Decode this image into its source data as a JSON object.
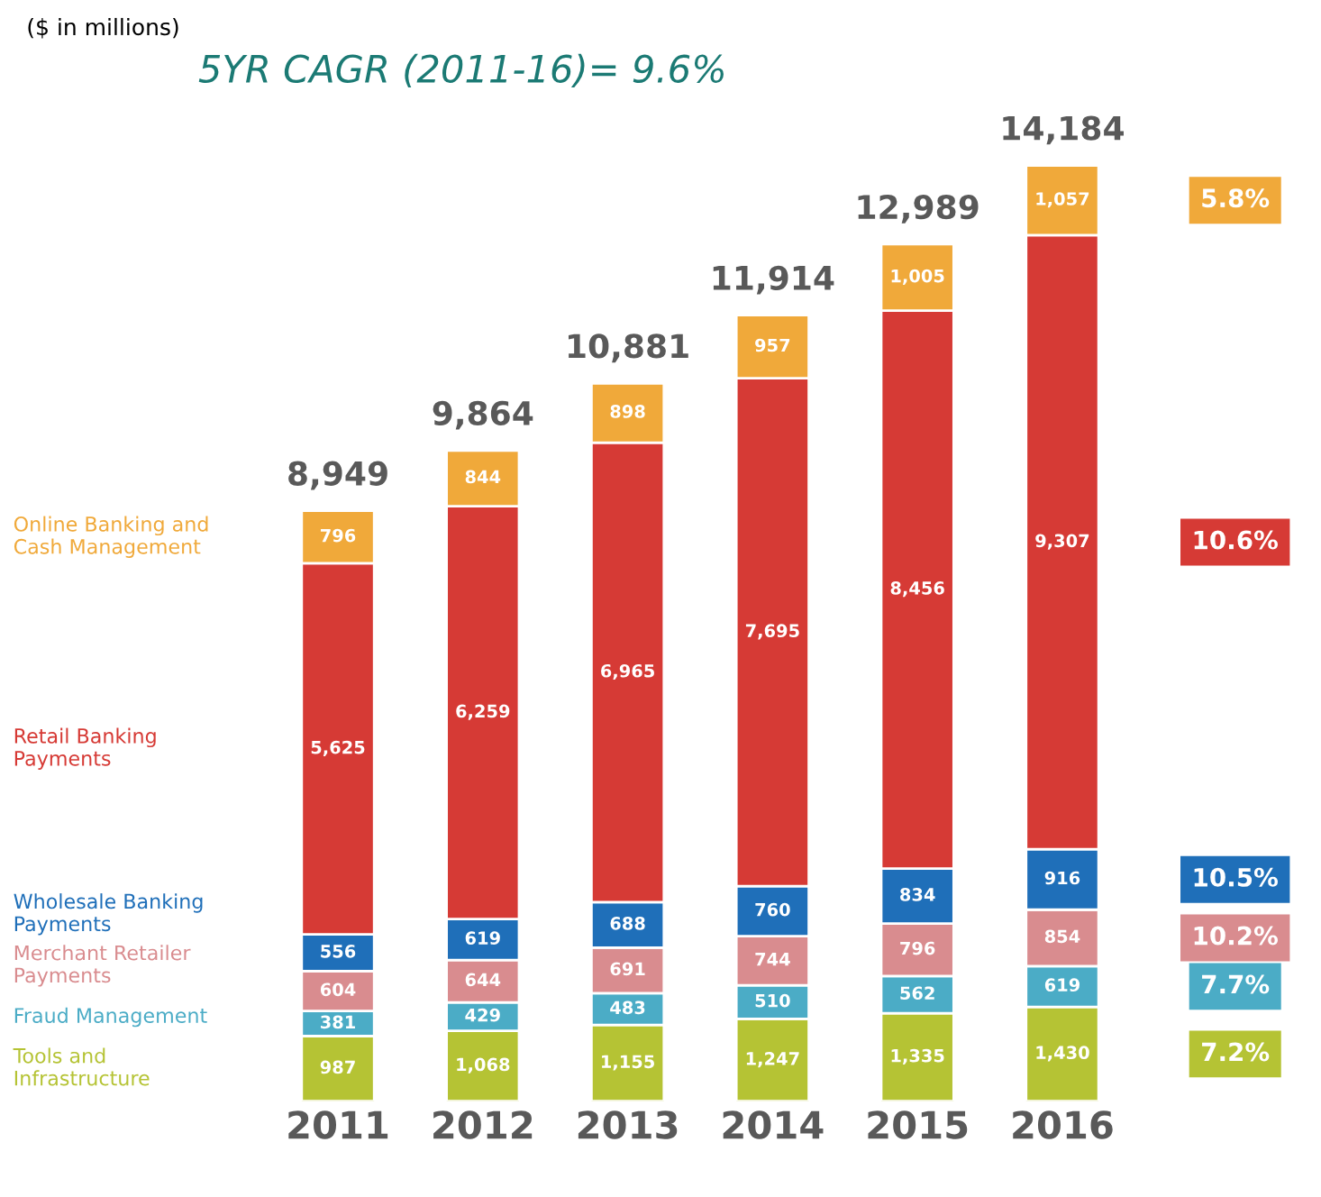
{
  "chart_data": {
    "type": "bar",
    "stacked": true,
    "title": "5YR CAGR (2011-16)= 9.6%",
    "subtitle": "($ in millions)",
    "categories": [
      "2011",
      "2012",
      "2013",
      "2014",
      "2015",
      "2016"
    ],
    "series": [
      {
        "name": "Tools and\nInfrastructure",
        "color": "#b5c334",
        "values": [
          987,
          1068,
          1155,
          1247,
          1335,
          1430
        ],
        "value_labels": [
          "987",
          "1,068",
          "1,155",
          "1,247",
          "1,335",
          "1,430"
        ]
      },
      {
        "name": "Fraud Management",
        "color": "#4bacc6",
        "values": [
          381,
          429,
          483,
          510,
          562,
          619
        ],
        "value_labels": [
          "381",
          "429",
          "483",
          "510",
          "562",
          "619"
        ]
      },
      {
        "name": "Merchant Retailer\nPayments",
        "color": "#d98c8f",
        "values": [
          604,
          644,
          691,
          744,
          796,
          854
        ],
        "value_labels": [
          "604",
          "644",
          "691",
          "744",
          "796",
          "854"
        ]
      },
      {
        "name": "Wholesale Banking\nPayments",
        "color": "#1f6fb9",
        "values": [
          556,
          619,
          688,
          760,
          834,
          916
        ],
        "value_labels": [
          "556",
          "619",
          "688",
          "760",
          "834",
          "916"
        ]
      },
      {
        "name": "Retail Banking\nPayments",
        "color": "#d63a35",
        "values": [
          5625,
          6259,
          6965,
          7695,
          8456,
          9307
        ],
        "value_labels": [
          "5,625",
          "6,259",
          "6,965",
          "7,695",
          "8,456",
          "9,307"
        ]
      },
      {
        "name": "Online Banking and\nCash Management",
        "color": "#f0a93a",
        "values": [
          796,
          844,
          898,
          957,
          1005,
          1057
        ],
        "value_labels": [
          "796",
          "844",
          "898",
          "957",
          "1,005",
          "1,057"
        ]
      }
    ],
    "totals": [
      "8,949",
      "9,864",
      "10,881",
      "11,914",
      "12,989",
      "14,184"
    ],
    "annotations": [
      "5.8%",
      "10.6%",
      "10.5%",
      "10.2%",
      "7.7%",
      "7.2%"
    ],
    "legend": "left"
  }
}
